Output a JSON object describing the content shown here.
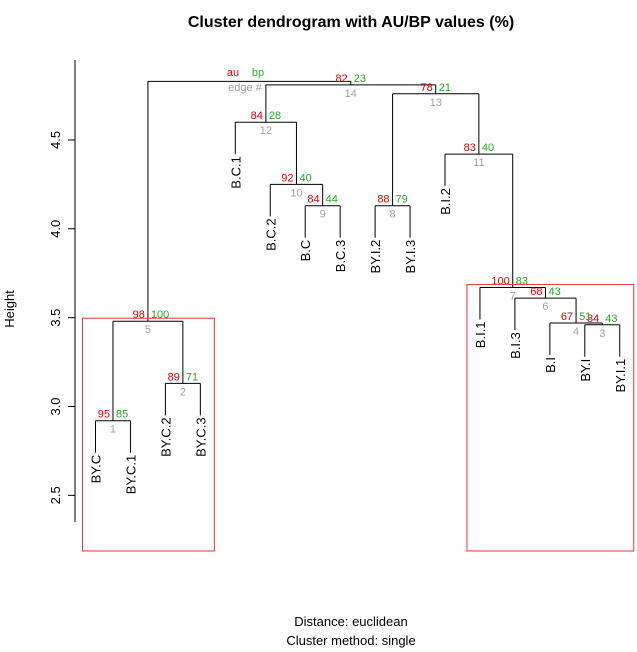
{
  "chart_data": {
    "type": "dendrogram",
    "title": "Cluster dendrogram with AU/BP values (%)",
    "ylabel": "Height",
    "ylim": [
      2.35,
      4.95
    ],
    "yticks": [
      2.5,
      3.0,
      3.5,
      4.0,
      4.5
    ],
    "ytick_labels": [
      "2.5",
      "3.0",
      "3.5",
      "4.0",
      "4.5"
    ],
    "distance_text": "Distance:  euclidean",
    "method_text": "Cluster method: single",
    "legend": {
      "au": "au",
      "bp": "bp",
      "edge": "edge #"
    },
    "leaves": [
      "BY.C",
      "BY.C.1",
      "BY.C.2",
      "BY.C.3",
      "B.C.1",
      "B.C.2",
      "B.C",
      "B.C.3",
      "BY.I.2",
      "BY.I.3",
      "B.I.2",
      "B.I.1",
      "B.I.3",
      "B.I",
      "BY.I",
      "BY.I.1"
    ],
    "merges": [
      {
        "edge": 1,
        "left": "BY.C",
        "right": "BY.C.1",
        "height": 2.92,
        "au": 95,
        "bp": 85
      },
      {
        "edge": 2,
        "left": "BY.C.2",
        "right": "BY.C.3",
        "height": 3.13,
        "au": 89,
        "bp": 71
      },
      {
        "edge": 3,
        "left": "BY.I",
        "right": "BY.I.1",
        "height": 3.46,
        "au": 84,
        "bp": 43
      },
      {
        "edge": 4,
        "left": "B.I",
        "right": "e3",
        "height": 3.47,
        "au": 67,
        "bp": 51
      },
      {
        "edge": 5,
        "left": "e1",
        "right": "e2",
        "height": 3.48,
        "au": 98,
        "bp": 100
      },
      {
        "edge": 6,
        "left": "B.I.3",
        "right": "e4",
        "height": 3.61,
        "au": 68,
        "bp": 43
      },
      {
        "edge": 7,
        "left": "B.I.1",
        "right": "e6",
        "height": 3.67,
        "au": 100,
        "bp": 83
      },
      {
        "edge": 8,
        "left": "BY.I.2",
        "right": "BY.I.3",
        "height": 4.13,
        "au": 88,
        "bp": 79
      },
      {
        "edge": 9,
        "left": "B.C",
        "right": "B.C.3",
        "height": 4.13,
        "au": 84,
        "bp": 44
      },
      {
        "edge": 10,
        "left": "B.C.2",
        "right": "e9",
        "height": 4.25,
        "au": 92,
        "bp": 40
      },
      {
        "edge": 11,
        "left": "B.I.2",
        "right": "e7",
        "height": 4.42,
        "au": 83,
        "bp": 40
      },
      {
        "edge": 12,
        "left": "B.C.1",
        "right": "e10",
        "height": 4.6,
        "au": 84,
        "bp": 28
      },
      {
        "edge": 13,
        "left": "e8",
        "right": "e11",
        "height": 4.76,
        "au": 78,
        "bp": 21
      },
      {
        "edge": 14,
        "left": "e12",
        "right": "e13",
        "height": 4.81,
        "au": 82,
        "bp": 23
      },
      {
        "edge": 15,
        "left": "e5",
        "right": "e14",
        "height": 4.83,
        "au": null,
        "bp": null
      }
    ],
    "highlight_clusters": [
      {
        "edge": 5,
        "leaves": [
          "BY.C",
          "BY.C.1",
          "BY.C.2",
          "BY.C.3"
        ]
      },
      {
        "edge": 7,
        "leaves": [
          "B.I.1",
          "B.I.3",
          "B.I",
          "BY.I",
          "BY.I.1"
        ]
      }
    ],
    "colors": {
      "au": "#dd0000",
      "bp": "#22aa22",
      "edge": "#a0a0a0",
      "rect": "#ee3333",
      "line": "#000000"
    }
  }
}
